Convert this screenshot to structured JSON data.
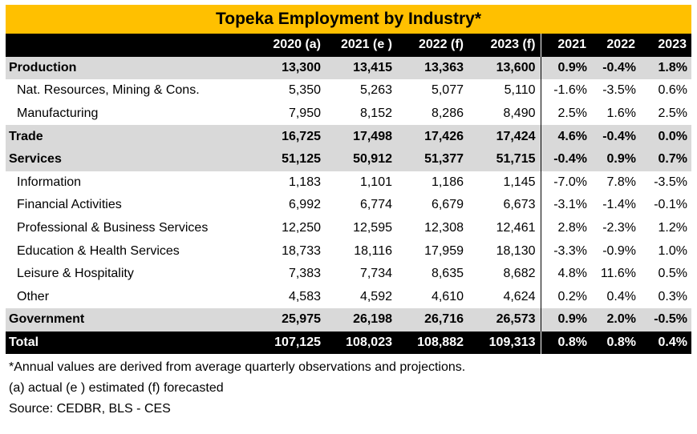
{
  "chart_data": {
    "type": "table",
    "title": "Topeka Employment by Industry*",
    "columns": [
      "",
      "2020 (a)",
      "2021 (e )",
      "2022 (f)",
      "2023 (f)",
      "2021",
      "2022",
      "2023"
    ],
    "rows": [
      {
        "label": "Production",
        "style": "bold",
        "values": [
          "13,300",
          "13,415",
          "13,363",
          "13,600",
          "0.9%",
          "-0.4%",
          "1.8%"
        ]
      },
      {
        "label": "Nat. Resources, Mining & Cons.",
        "style": "sub",
        "values": [
          "5,350",
          "5,263",
          "5,077",
          "5,110",
          "-1.6%",
          "-3.5%",
          "0.6%"
        ]
      },
      {
        "label": "Manufacturing",
        "style": "sub",
        "values": [
          "7,950",
          "8,152",
          "8,286",
          "8,490",
          "2.5%",
          "1.6%",
          "2.5%"
        ]
      },
      {
        "label": "Trade",
        "style": "bold",
        "values": [
          "16,725",
          "17,498",
          "17,426",
          "17,424",
          "4.6%",
          "-0.4%",
          "0.0%"
        ]
      },
      {
        "label": "Services",
        "style": "bold",
        "values": [
          "51,125",
          "50,912",
          "51,377",
          "51,715",
          "-0.4%",
          "0.9%",
          "0.7%"
        ]
      },
      {
        "label": "Information",
        "style": "sub",
        "values": [
          "1,183",
          "1,101",
          "1,186",
          "1,145",
          "-7.0%",
          "7.8%",
          "-3.5%"
        ]
      },
      {
        "label": "Financial Activities",
        "style": "sub",
        "values": [
          "6,992",
          "6,774",
          "6,679",
          "6,673",
          "-3.1%",
          "-1.4%",
          "-0.1%"
        ]
      },
      {
        "label": "Professional & Business Services",
        "style": "sub",
        "values": [
          "12,250",
          "12,595",
          "12,308",
          "12,461",
          "2.8%",
          "-2.3%",
          "1.2%"
        ]
      },
      {
        "label": "Education & Health Services",
        "style": "sub",
        "values": [
          "18,733",
          "18,116",
          "17,959",
          "18,130",
          "-3.3%",
          "-0.9%",
          "1.0%"
        ]
      },
      {
        "label": "Leisure & Hospitality",
        "style": "sub",
        "values": [
          "7,383",
          "7,734",
          "8,635",
          "8,682",
          "4.8%",
          "11.6%",
          "0.5%"
        ]
      },
      {
        "label": "Other",
        "style": "sub",
        "values": [
          "4,583",
          "4,592",
          "4,610",
          "4,624",
          "0.2%",
          "0.4%",
          "0.3%"
        ]
      },
      {
        "label": "Government",
        "style": "bold",
        "values": [
          "25,975",
          "26,198",
          "26,716",
          "26,573",
          "0.9%",
          "2.0%",
          "-0.5%"
        ]
      },
      {
        "label": "Total",
        "style": "total",
        "values": [
          "107,125",
          "108,023",
          "108,882",
          "109,313",
          "0.8%",
          "0.8%",
          "0.4%"
        ]
      }
    ],
    "footnotes": [
      "*Annual values are derived from average quarterly observations and projections.",
      "(a) actual (e ) estimated (f) forecasted",
      "Source: CEDBR, BLS - CES"
    ]
  },
  "colors": {
    "title_bg": "#FFC000",
    "header_bg": "#000000",
    "bold_row_bg": "#D9D9D9"
  }
}
